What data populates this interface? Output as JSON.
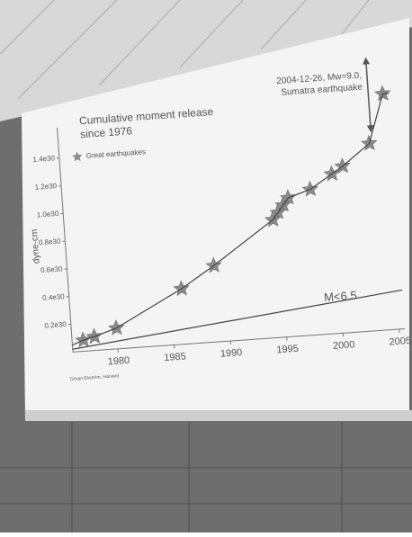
{
  "chart_data": {
    "type": "line",
    "title": [
      "Cumulative moment release",
      "since 1976"
    ],
    "ylabel": "dyne-cm",
    "source": "Göran Ekström, Harvard",
    "annotations": [
      {
        "text": [
          "2004-12-26, Mw=9.0,",
          "Sumatra earthquake"
        ],
        "x": 2004.99,
        "y": 1.7e+30
      },
      {
        "text": [
          "M<6.5"
        ],
        "x": 2000,
        "y": 2.6e+29
      }
    ],
    "xlim": [
      1976,
      2005.5
    ],
    "xticks": [
      1980,
      1985,
      1990,
      1995,
      2000,
      2005
    ],
    "ylim": [
      0,
      1.75e+30
    ],
    "yticks": [
      {
        "value": 2e+29,
        "label": "0.2e30"
      },
      {
        "value": 4e+29,
        "label": "0.4e30"
      },
      {
        "value": 6e+29,
        "label": "0.6e30"
      },
      {
        "value": 8e+29,
        "label": "0.8e30"
      },
      {
        "value": 1e+30,
        "label": "1.0e30"
      },
      {
        "value": 1.2e+30,
        "label": "1.2e30"
      },
      {
        "value": 1.4e+30,
        "label": "1.4e30"
      }
    ],
    "series": [
      {
        "name": "Great earthquakes",
        "kind": "scatter",
        "marker": "star",
        "color": "#8a8a8a",
        "x": [
          1977,
          1978,
          1980,
          1986,
          1989,
          1994.5,
          1995,
          1995.5,
          1996,
          1998,
          2000,
          2001,
          2003.5,
          2004.99
        ],
        "values": [
          8e+28,
          1e+29,
          1.5e+29,
          4e+29,
          5.5e+29,
          8.5e+29,
          9e+29,
          9.5e+29,
          1e+30,
          1.05e+30,
          1.15e+30,
          1.2e+30,
          1.35e+30,
          1.7e+30
        ]
      },
      {
        "kind": "line",
        "color": "#444444",
        "x": [
          1976,
          1977,
          1978,
          1980,
          1986,
          1989,
          1994.5,
          1995,
          1995.5,
          1996,
          1998,
          2000,
          2001,
          2003.5,
          2004.99,
          2005.5
        ],
        "values": [
          5e+28,
          8e+28,
          1e+29,
          1.5e+29,
          4e+29,
          5.5e+29,
          8.5e+29,
          9e+29,
          9.5e+29,
          1e+30,
          1.05e+30,
          1.15e+30,
          1.2e+30,
          1.35e+30,
          1.7e+30,
          1.7e+30
        ]
      },
      {
        "kind": "line",
        "color": "#444444",
        "x": [
          1976,
          2005.5
        ],
        "values": [
          2e+28,
          2.8e+29
        ]
      }
    ]
  }
}
